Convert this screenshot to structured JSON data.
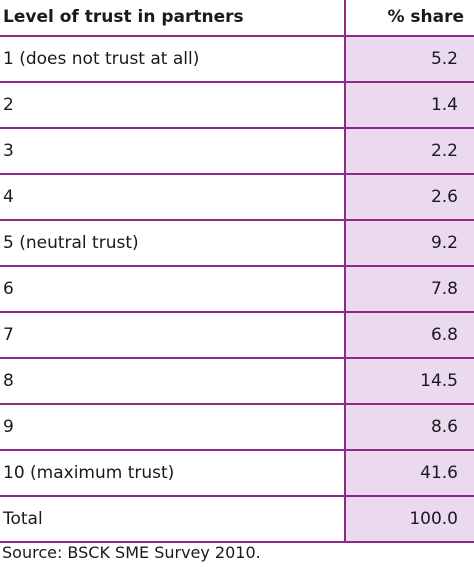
{
  "table": {
    "headers": [
      "Level of trust in partners",
      "% share"
    ],
    "rows": [
      {
        "label": "1 (does not trust at all)",
        "value": "5.2"
      },
      {
        "label": "2",
        "value": "1.4"
      },
      {
        "label": "3",
        "value": "2.2"
      },
      {
        "label": "4",
        "value": "2.6"
      },
      {
        "label": "5 (neutral trust)",
        "value": "9.2"
      },
      {
        "label": "6",
        "value": "7.8"
      },
      {
        "label": "7",
        "value": "6.8"
      },
      {
        "label": "8",
        "value": "14.5"
      },
      {
        "label": "9",
        "value": "8.6"
      },
      {
        "label": "10 (maximum trust)",
        "value": "41.6"
      },
      {
        "label": "Total",
        "value": "100.0"
      }
    ]
  },
  "source": "Source: BSCK SME Survey 2010.",
  "colors": {
    "rule": "#8c2a8c",
    "value_column_fill": "#ebdaef"
  }
}
